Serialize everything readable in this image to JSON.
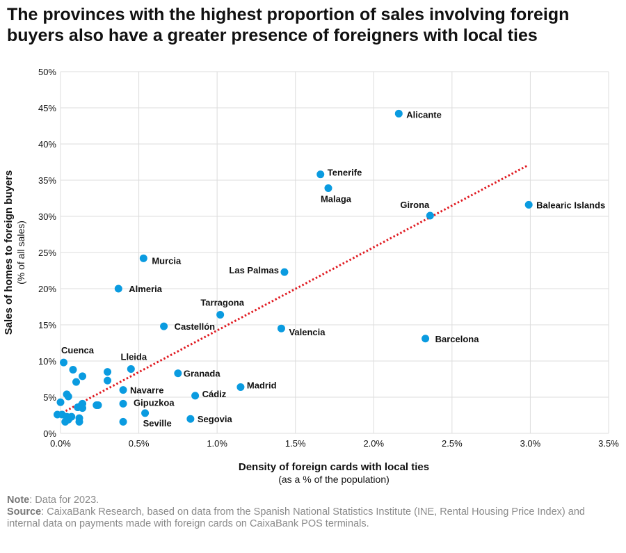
{
  "title": "The provinces with the highest proportion of sales involving foreign buyers also have a greater presence of foreigners with local ties",
  "notes": {
    "note_label": "Note",
    "note_text": ": Data for 2023.",
    "source_label": "Source",
    "source_text": ": CaixaBank Research, based on data from the Spanish National Statistics Institute (INE, Rental Housing Price Index) and internal data on payments made with foreign cards on CaixaBank POS terminals."
  },
  "colors": {
    "point": "#0a9be0",
    "trend": "#e01b22",
    "grid": "#dddddd",
    "text": "#111111"
  },
  "chart_data": {
    "type": "scatter",
    "xlabel": "Density of foreign cards with local ties",
    "xlabel_sub": "(as a % of the population)",
    "ylabel": "Sales of homes to foreign buyers",
    "ylabel_sub": "(% of all sales)",
    "xlim": [
      0,
      3.5
    ],
    "ylim": [
      0,
      50
    ],
    "x_ticks": [
      0,
      0.5,
      1,
      1.5,
      2,
      2.5,
      3,
      3.5
    ],
    "x_tick_labels": [
      "0.0%",
      "0.5%",
      "1.0%",
      "1.5%",
      "2.0%",
      "2.5%",
      "3.0%",
      "3.5%"
    ],
    "y_ticks": [
      0,
      5,
      10,
      15,
      20,
      25,
      30,
      35,
      40,
      45,
      50
    ],
    "y_tick_labels": [
      "0%",
      "5%",
      "10%",
      "15%",
      "20%",
      "25%",
      "30%",
      "35%",
      "40%",
      "45%",
      "50%"
    ],
    "grid": true,
    "trendline": {
      "style": "dotted",
      "x": [
        -0.01,
        2.98
      ],
      "y": [
        2.6,
        37.0
      ]
    },
    "labeled_points": [
      {
        "label": "Alicante",
        "x": 2.16,
        "y": 44.2
      },
      {
        "label": "Tenerife",
        "x": 1.66,
        "y": 35.8
      },
      {
        "label": "Malaga",
        "x": 1.71,
        "y": 33.9
      },
      {
        "label": "Balearic Islands",
        "x": 2.99,
        "y": 31.6
      },
      {
        "label": "Girona",
        "x": 2.36,
        "y": 30.1
      },
      {
        "label": "Murcia",
        "x": 0.53,
        "y": 24.2
      },
      {
        "label": "Las Palmas",
        "x": 1.43,
        "y": 22.3
      },
      {
        "label": "Almeria",
        "x": 0.37,
        "y": 20.0
      },
      {
        "label": "Tarragona",
        "x": 1.02,
        "y": 16.4
      },
      {
        "label": "Castellón",
        "x": 0.66,
        "y": 14.8
      },
      {
        "label": "Valencia",
        "x": 1.41,
        "y": 14.5
      },
      {
        "label": "Barcelona",
        "x": 2.33,
        "y": 13.1
      },
      {
        "label": "Cuenca",
        "x": 0.02,
        "y": 9.8
      },
      {
        "label": "Lleida",
        "x": 0.45,
        "y": 8.9
      },
      {
        "label": "Granada",
        "x": 0.75,
        "y": 8.3
      },
      {
        "label": "Madrid",
        "x": 1.15,
        "y": 6.4
      },
      {
        "label": "Navarre",
        "x": 0.4,
        "y": 6.0
      },
      {
        "label": "Cádiz",
        "x": 0.86,
        "y": 5.2
      },
      {
        "label": "Gipuzkoa",
        "x": 0.4,
        "y": 4.1
      },
      {
        "label": "Seville",
        "x": 0.54,
        "y": 2.8
      },
      {
        "label": "Segovia",
        "x": 0.83,
        "y": 2.0
      }
    ],
    "unlabeled_points": [
      {
        "x": 0.08,
        "y": 8.8
      },
      {
        "x": 0.14,
        "y": 7.9
      },
      {
        "x": 0.1,
        "y": 7.1
      },
      {
        "x": 0.3,
        "y": 8.5
      },
      {
        "x": 0.3,
        "y": 7.3
      },
      {
        "x": 0.04,
        "y": 5.4
      },
      {
        "x": 0.05,
        "y": 5.1
      },
      {
        "x": 0.0,
        "y": 4.3
      },
      {
        "x": 0.14,
        "y": 4.1
      },
      {
        "x": 0.13,
        "y": 3.8
      },
      {
        "x": 0.11,
        "y": 3.6
      },
      {
        "x": 0.14,
        "y": 3.5
      },
      {
        "x": 0.23,
        "y": 3.9
      },
      {
        "x": 0.24,
        "y": 3.9
      },
      {
        "x": -0.02,
        "y": 2.6
      },
      {
        "x": 0.01,
        "y": 2.6
      },
      {
        "x": 0.04,
        "y": 2.3
      },
      {
        "x": 0.06,
        "y": 2.2
      },
      {
        "x": 0.05,
        "y": 1.9
      },
      {
        "x": 0.03,
        "y": 1.6
      },
      {
        "x": 0.07,
        "y": 2.3
      },
      {
        "x": 0.12,
        "y": 2.1
      },
      {
        "x": 0.12,
        "y": 1.6
      },
      {
        "x": 0.4,
        "y": 1.6
      }
    ]
  }
}
